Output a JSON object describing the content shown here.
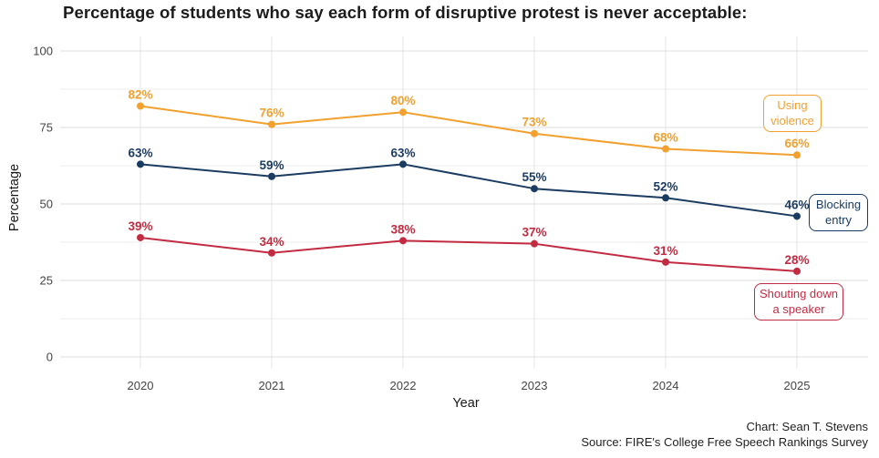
{
  "title": "Percentage of students who say each form of disruptive protest is never acceptable:",
  "credits": {
    "chart": "Chart: Sean T. Stevens",
    "source": "Source: FIRE's College Free Speech Rankings Survey"
  },
  "chart_data": {
    "type": "line",
    "title": "Percentage of students who say each form of disruptive protest is never acceptable:",
    "xlabel": "Year",
    "ylabel": "Percentage",
    "x": [
      2020,
      2021,
      2022,
      2023,
      2024,
      2025
    ],
    "series": [
      {
        "name": "Using violence",
        "color": "#F2A02E",
        "values": [
          82,
          76,
          80,
          73,
          68,
          66
        ]
      },
      {
        "name": "Blocking entry",
        "color": "#1B3C61",
        "values": [
          63,
          59,
          63,
          55,
          52,
          46
        ]
      },
      {
        "name": "Shouting down a speaker",
        "color": "#C32B42",
        "values": [
          39,
          34,
          38,
          37,
          31,
          28
        ]
      }
    ],
    "value_suffix": "%",
    "ylim": [
      0,
      100
    ],
    "y_ticks": [
      0,
      25,
      50,
      75,
      100
    ],
    "y_minor_ticks": [
      12.5,
      37.5,
      62.5,
      87.5
    ],
    "grid": "horizontal major+minor, vertical at each year",
    "legend_position": "inline boxed labels at right of lines"
  }
}
